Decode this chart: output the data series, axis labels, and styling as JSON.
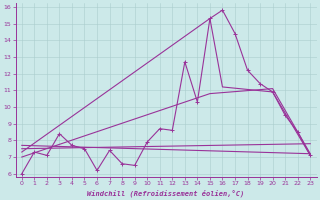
{
  "background_color": "#cce9e9",
  "line_color": "#993399",
  "xlabel": "Windchill (Refroidissement éolien,°C)",
  "xlim": [
    -0.5,
    23.5
  ],
  "ylim": [
    5.8,
    16.2
  ],
  "yticks": [
    6,
    7,
    8,
    9,
    10,
    11,
    12,
    13,
    14,
    15,
    16
  ],
  "xticks": [
    0,
    1,
    2,
    3,
    4,
    5,
    6,
    7,
    8,
    9,
    10,
    11,
    12,
    13,
    14,
    15,
    16,
    17,
    18,
    19,
    20,
    21,
    22,
    23
  ],
  "series_main": {
    "x": [
      0,
      1,
      2,
      3,
      4,
      5,
      6,
      7,
      8,
      9,
      10,
      11,
      12,
      13,
      14,
      15,
      16,
      17,
      18,
      19,
      20,
      21,
      22,
      23
    ],
    "y": [
      6.0,
      7.3,
      7.1,
      8.4,
      7.7,
      7.5,
      6.2,
      7.4,
      6.6,
      6.5,
      7.9,
      8.7,
      8.6,
      12.7,
      10.3,
      15.3,
      15.8,
      14.4,
      12.2,
      11.4,
      10.9,
      9.5,
      8.5,
      7.1
    ]
  },
  "series_line1": {
    "x": [
      0,
      15,
      16,
      20,
      23
    ],
    "y": [
      7.3,
      15.3,
      11.2,
      10.9,
      7.1
    ]
  },
  "series_line2": {
    "x": [
      0,
      23
    ],
    "y": [
      7.5,
      7.8
    ]
  },
  "series_line3": {
    "x": [
      0,
      15,
      20,
      23
    ],
    "y": [
      7.0,
      10.8,
      11.1,
      7.2
    ]
  },
  "series_line4": {
    "x": [
      0,
      23
    ],
    "y": [
      7.7,
      7.2
    ]
  }
}
